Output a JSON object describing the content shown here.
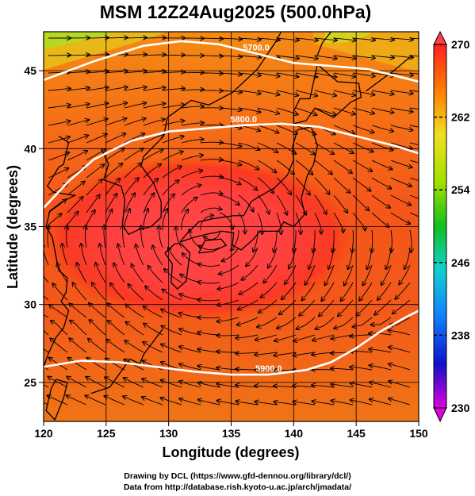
{
  "title": "MSM 12Z24Aug2025 (500.0hPa)",
  "xlabel": "Longitude (degrees)",
  "ylabel": "Latitude  (degrees)",
  "credits": [
    "Drawing by DCL (https://www.gfd-dennou.org/library/dcl/)",
    "Data from http://database.rish.kyoto-u.ac.jp/arch/jmadata/"
  ],
  "map": {
    "lon_range": [
      120,
      150
    ],
    "lat_range": [
      22.5,
      47.5
    ],
    "lon_ticks": [
      120,
      125,
      130,
      135,
      140,
      145,
      150
    ],
    "lat_ticks": [
      25,
      30,
      35,
      40,
      45
    ],
    "grid": true,
    "shaded_field": "temperature (K)",
    "colorbar": {
      "min": 230,
      "max": 270,
      "ticks": [
        230,
        238,
        246,
        254,
        262,
        270
      ],
      "extend": "both"
    },
    "height_contours": [
      {
        "label": "5700.0",
        "points": [
          [
            120,
            44.4
          ],
          [
            124,
            45.6
          ],
          [
            128,
            46.6
          ],
          [
            131,
            46.9
          ],
          [
            134,
            46.7
          ],
          [
            137,
            46.1
          ],
          [
            140,
            45.5
          ],
          [
            143,
            45.3
          ],
          [
            146,
            45.1
          ],
          [
            148,
            44.7
          ],
          [
            150,
            44.3
          ]
        ]
      },
      {
        "label": "5800.0",
        "points": [
          [
            120,
            36.2
          ],
          [
            122,
            37.9
          ],
          [
            124,
            39.3
          ],
          [
            127,
            40.5
          ],
          [
            130,
            41.1
          ],
          [
            133,
            41.3
          ],
          [
            136,
            41.5
          ],
          [
            139,
            41.6
          ],
          [
            142,
            41.4
          ],
          [
            145,
            40.8
          ],
          [
            148,
            40.2
          ],
          [
            150,
            39.7
          ]
        ]
      },
      {
        "label": "5900.0",
        "points": [
          [
            120,
            26.0
          ],
          [
            123,
            26.4
          ],
          [
            126,
            26.3
          ],
          [
            129,
            26.0
          ],
          [
            132,
            25.7
          ],
          [
            135,
            25.5
          ],
          [
            138,
            25.5
          ],
          [
            141,
            25.8
          ],
          [
            143,
            26.3
          ],
          [
            145,
            27.2
          ],
          [
            147,
            28.3
          ],
          [
            149,
            29.2
          ],
          [
            150,
            29.6
          ]
        ]
      }
    ],
    "circulation_center": [
      133.5,
      34.8
    ]
  }
}
